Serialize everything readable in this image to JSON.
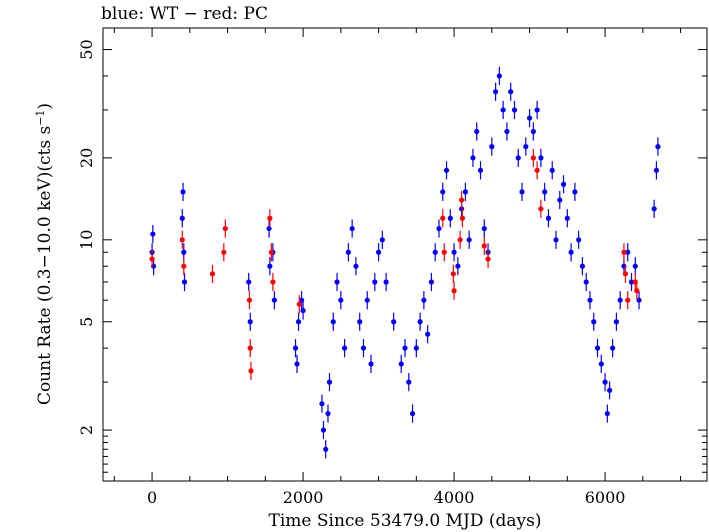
{
  "chart_data": {
    "type": "scatter",
    "title": "blue: WT − red: PC",
    "xlabel": "Time Since 53479.0 MJD (days)",
    "ylabel_main": "Count Rate (0.3−10.0 keV)(cts s",
    "ylabel_exp": "−1",
    "ylabel_close": ")",
    "xlim": [
      -650,
      7350
    ],
    "ylim": [
      1.3,
      60
    ],
    "yscale": "log",
    "x_ticks": [
      0,
      2000,
      4000,
      6000
    ],
    "x_tick_labels": [
      "0",
      "2000",
      "4000",
      "6000"
    ],
    "y_ticks": [
      2,
      5,
      10,
      20,
      50
    ],
    "y_tick_labels": [
      "2",
      "5",
      "10",
      "20",
      "50"
    ],
    "grid": false,
    "colors": {
      "WT": "#0000ff",
      "PC": "#ff0000"
    },
    "series": [
      {
        "color_key": "WT",
        "points": [
          [
            0,
            9
          ],
          [
            10,
            10.5
          ],
          [
            20,
            8
          ],
          [
            400,
            12
          ],
          [
            410,
            15
          ],
          [
            420,
            9
          ],
          [
            430,
            7
          ],
          [
            1280,
            7
          ],
          [
            1300,
            5
          ],
          [
            1550,
            11
          ],
          [
            1560,
            8
          ],
          [
            1600,
            9
          ],
          [
            1620,
            6
          ],
          [
            1900,
            4
          ],
          [
            1920,
            3.5
          ],
          [
            1940,
            5
          ],
          [
            1980,
            6
          ],
          [
            2000,
            5.5
          ],
          [
            2250,
            2.5
          ],
          [
            2270,
            2
          ],
          [
            2300,
            1.7
          ],
          [
            2330,
            2.3
          ],
          [
            2350,
            3
          ],
          [
            2400,
            5
          ],
          [
            2450,
            7
          ],
          [
            2500,
            6
          ],
          [
            2550,
            4
          ],
          [
            2600,
            9
          ],
          [
            2650,
            11
          ],
          [
            2700,
            8
          ],
          [
            2750,
            5
          ],
          [
            2800,
            4
          ],
          [
            2850,
            6
          ],
          [
            2900,
            3.5
          ],
          [
            2950,
            7
          ],
          [
            3000,
            9
          ],
          [
            3050,
            10
          ],
          [
            3100,
            7
          ],
          [
            3200,
            5
          ],
          [
            3300,
            3.5
          ],
          [
            3350,
            4
          ],
          [
            3400,
            3
          ],
          [
            3450,
            2.3
          ],
          [
            3500,
            4
          ],
          [
            3550,
            5
          ],
          [
            3600,
            6
          ],
          [
            3650,
            4.5
          ],
          [
            3700,
            7
          ],
          [
            3750,
            9
          ],
          [
            3800,
            11
          ],
          [
            3850,
            15
          ],
          [
            3900,
            18
          ],
          [
            3950,
            12
          ],
          [
            4000,
            9
          ],
          [
            4050,
            8
          ],
          [
            4100,
            13
          ],
          [
            4150,
            15
          ],
          [
            4200,
            10
          ],
          [
            4250,
            20
          ],
          [
            4300,
            25
          ],
          [
            4350,
            18
          ],
          [
            4400,
            11
          ],
          [
            4450,
            9
          ],
          [
            4500,
            22
          ],
          [
            4550,
            35
          ],
          [
            4600,
            40
          ],
          [
            4650,
            30
          ],
          [
            4700,
            25
          ],
          [
            4750,
            35
          ],
          [
            4800,
            30
          ],
          [
            4850,
            20
          ],
          [
            4900,
            15
          ],
          [
            4950,
            22
          ],
          [
            5000,
            28
          ],
          [
            5050,
            25
          ],
          [
            5100,
            30
          ],
          [
            5150,
            20
          ],
          [
            5200,
            15
          ],
          [
            5250,
            12
          ],
          [
            5300,
            18
          ],
          [
            5350,
            10
          ],
          [
            5400,
            14
          ],
          [
            5450,
            16
          ],
          [
            5500,
            12
          ],
          [
            5550,
            9
          ],
          [
            5600,
            15
          ],
          [
            5650,
            10
          ],
          [
            5700,
            8
          ],
          [
            5750,
            7
          ],
          [
            5800,
            6
          ],
          [
            5850,
            5
          ],
          [
            5900,
            4
          ],
          [
            5950,
            3.5
          ],
          [
            6000,
            3
          ],
          [
            6030,
            2.3
          ],
          [
            6060,
            2.8
          ],
          [
            6100,
            4
          ],
          [
            6150,
            5
          ],
          [
            6200,
            6
          ],
          [
            6250,
            8
          ],
          [
            6300,
            9
          ],
          [
            6350,
            7
          ],
          [
            6400,
            8
          ],
          [
            6450,
            6
          ],
          [
            6650,
            13
          ],
          [
            6680,
            18
          ],
          [
            6700,
            22
          ]
        ]
      },
      {
        "color_key": "PC",
        "points": [
          [
            0,
            8.5
          ],
          [
            400,
            10
          ],
          [
            420,
            8
          ],
          [
            800,
            7.5
          ],
          [
            950,
            9
          ],
          [
            970,
            11
          ],
          [
            1290,
            6
          ],
          [
            1300,
            4
          ],
          [
            1310,
            3.3
          ],
          [
            1560,
            12
          ],
          [
            1580,
            9
          ],
          [
            1600,
            7
          ],
          [
            1950,
            5.8
          ],
          [
            3850,
            12
          ],
          [
            3870,
            9
          ],
          [
            3990,
            7.5
          ],
          [
            4000,
            6.5
          ],
          [
            4080,
            10
          ],
          [
            4100,
            14
          ],
          [
            4110,
            12
          ],
          [
            4400,
            9.5
          ],
          [
            4450,
            8.5
          ],
          [
            5050,
            20
          ],
          [
            5100,
            18
          ],
          [
            5150,
            13
          ],
          [
            6250,
            9
          ],
          [
            6270,
            7.5
          ],
          [
            6300,
            6
          ],
          [
            6400,
            7
          ],
          [
            6420,
            6.5
          ]
        ]
      }
    ]
  }
}
